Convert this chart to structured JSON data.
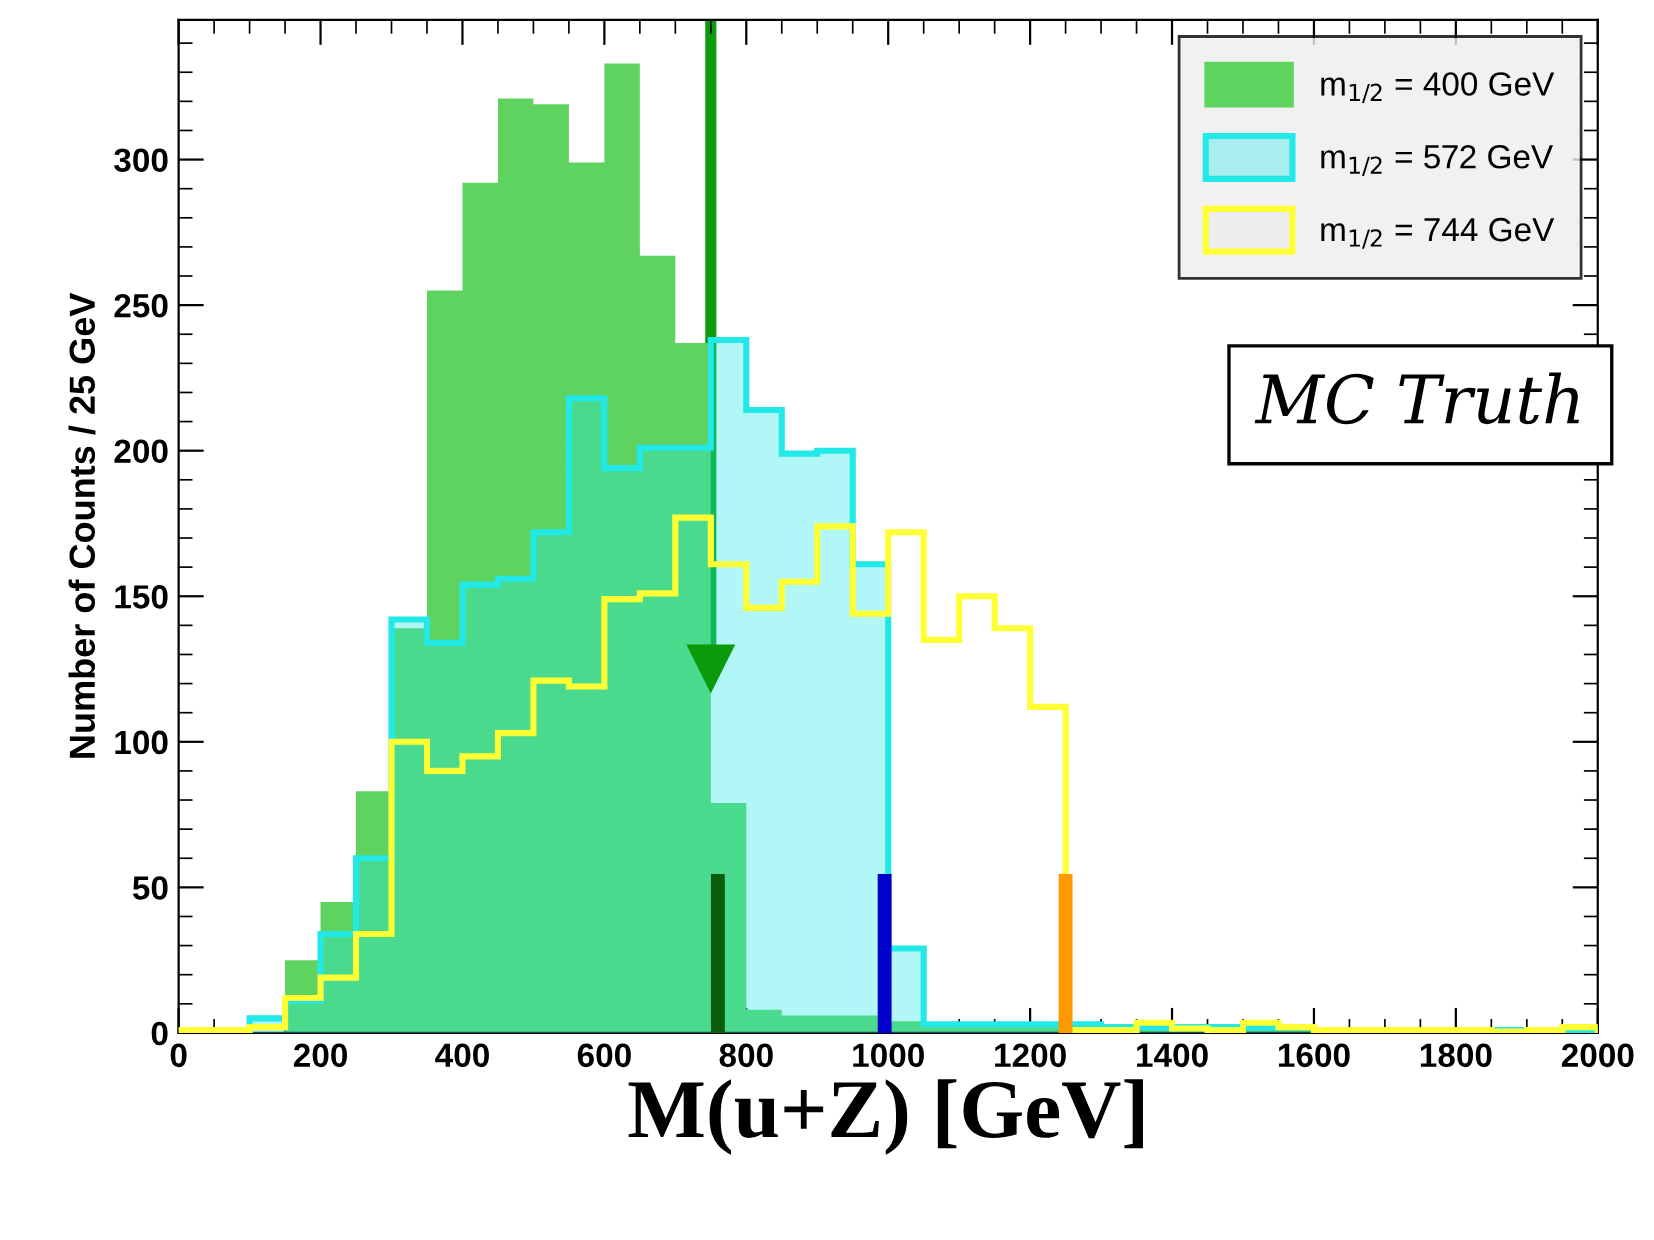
{
  "chart_data": {
    "type": "histogram",
    "ylabel": "Number of Counts / 25 GeV",
    "xlabel": "M(u+Z) [GeV]",
    "bins": [
      0,
      50,
      100,
      150,
      200,
      250,
      300,
      350,
      400,
      450,
      500,
      550,
      600,
      650,
      700,
      750,
      800,
      850,
      900,
      950,
      1000,
      1050,
      1100,
      1150,
      1200,
      1250,
      1300,
      1350,
      1400,
      1450,
      1500,
      1550,
      1600,
      1650,
      1700,
      1750,
      1800,
      1850,
      1900,
      1950,
      2000
    ],
    "series": [
      {
        "name": "m$_{1/2}$ = 400 GeV",
        "color": "#5fd35f",
        "values": [
          0,
          0,
          0,
          25,
          45,
          83,
          139,
          255,
          292,
          321,
          319,
          299,
          333,
          267,
          237,
          79,
          8,
          6,
          6,
          6,
          4,
          3,
          3,
          2,
          2,
          2,
          1,
          1,
          1,
          1,
          1,
          1,
          1,
          1,
          1,
          0,
          0,
          0,
          0,
          0
        ]
      },
      {
        "name": "m$_{1/2}$ = 572 GeV",
        "color": "#22e8e8",
        "values": [
          0,
          0,
          5,
          11,
          34,
          60,
          142,
          134,
          154,
          156,
          172,
          218,
          194,
          201,
          201,
          238,
          214,
          199,
          200,
          161,
          29,
          3,
          3,
          3,
          3,
          3,
          2,
          2,
          2,
          2,
          2,
          2,
          1,
          1,
          1,
          1,
          1,
          1,
          1,
          1
        ]
      },
      {
        "name": "m$_{1/2}$ = 744 GeV",
        "color": "#ffff33",
        "values": [
          1,
          1,
          2,
          12,
          19,
          34,
          100,
          90,
          95,
          103,
          121,
          119,
          149,
          151,
          177,
          161,
          146,
          155,
          174,
          144,
          172,
          135,
          150,
          139,
          112,
          1,
          1,
          3.5,
          1.5,
          1,
          3.5,
          2,
          1,
          1,
          1,
          1,
          1,
          0.5,
          1,
          2
        ]
      }
    ],
    "xlim": [
      0,
      2000
    ],
    "xticks": [
      0,
      200,
      400,
      600,
      800,
      1000,
      1200,
      1400,
      1600,
      1800,
      2000
    ],
    "ylim": [
      0,
      348
    ],
    "yticks": [
      0,
      50,
      100,
      150,
      200,
      250,
      300
    ],
    "legend": "top right",
    "ref_lines": [
      {
        "axis": "x",
        "value": 750,
        "label": null,
        "color": "#0a9a0a"
      },
      {
        "axis": "x",
        "value": 760,
        "label": null,
        "color": "#0b5e0b"
      },
      {
        "axis": "x",
        "value": 995,
        "label": null,
        "color": "#0000cc"
      },
      {
        "axis": "x",
        "value": 1250,
        "label": null,
        "color": "#ff9900"
      }
    ],
    "annotations": [
      "MC Truth"
    ]
  }
}
